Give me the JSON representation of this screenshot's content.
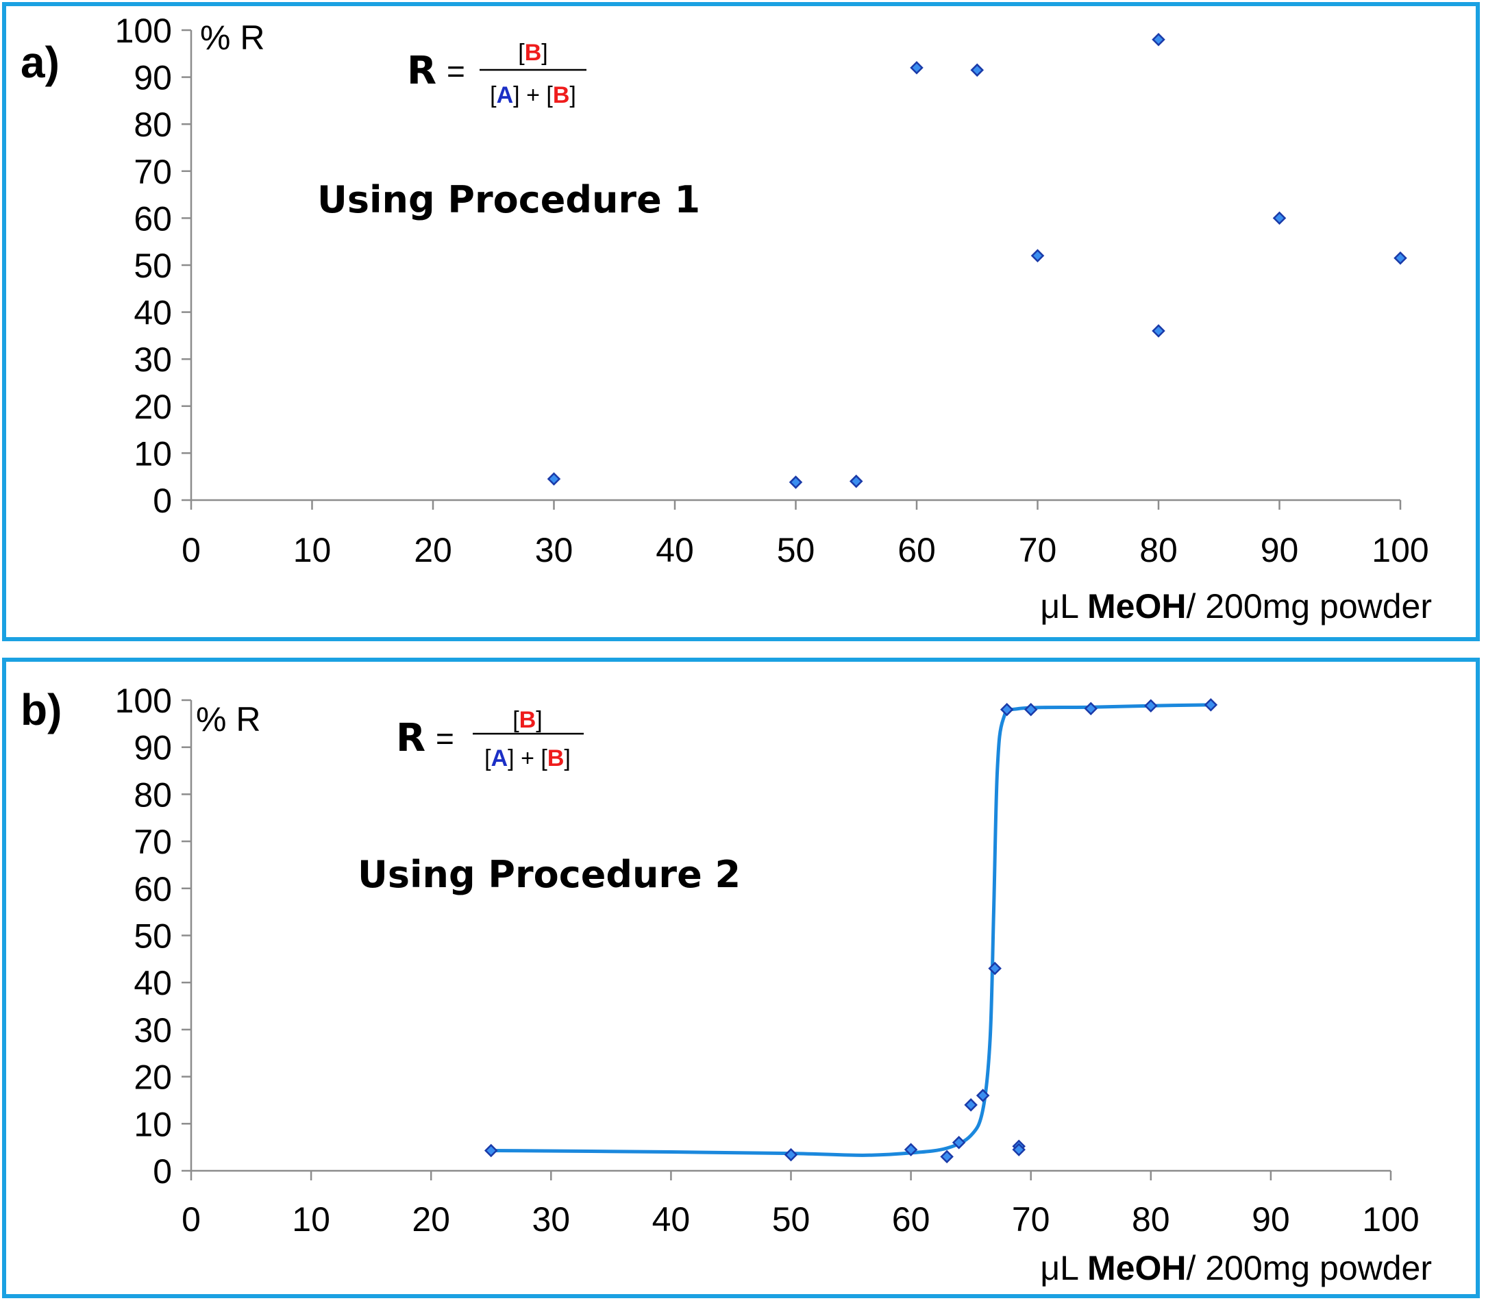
{
  "colors": {
    "border": "#1ba1e2",
    "marker_fill": "#3a8ef0",
    "marker_stroke": "#1a3aa8",
    "curve": "#1b88dd",
    "A": "#1b2fc6",
    "B": "#ef1c1c"
  },
  "formula": {
    "lhs": "R",
    "equals": "=",
    "num_open": "[",
    "num_var": "B",
    "num_close": "]",
    "den_open_a": "[",
    "den_var_a": "A",
    "den_mid": "] + [",
    "den_var_b": "B",
    "den_close_b": "]"
  },
  "chart_data": [
    {
      "panel": "a)",
      "type": "scatter",
      "annotation": "Using Procedure 1",
      "ylabel": "% R",
      "xlabel": {
        "prefix": "μL ",
        "bold": "MeOH",
        "suffix": "/ 200mg powder"
      },
      "xlim": [
        0,
        100
      ],
      "ylim": [
        0,
        100
      ],
      "xticks": [
        "0",
        "10",
        "20",
        "30",
        "40",
        "50",
        "60",
        "70",
        "80",
        "90",
        "100"
      ],
      "yticks": [
        "0",
        "10",
        "20",
        "30",
        "40",
        "50",
        "60",
        "70",
        "80",
        "90",
        "100"
      ],
      "points": [
        {
          "x": 30,
          "y": 4.5
        },
        {
          "x": 50,
          "y": 3.8
        },
        {
          "x": 55,
          "y": 4
        },
        {
          "x": 60,
          "y": 92
        },
        {
          "x": 65,
          "y": 91.5
        },
        {
          "x": 70,
          "y": 52
        },
        {
          "x": 80,
          "y": 98
        },
        {
          "x": 80,
          "y": 36
        },
        {
          "x": 90,
          "y": 60
        },
        {
          "x": 100,
          "y": 51.5
        }
      ]
    },
    {
      "panel": "b)",
      "type": "scatter",
      "annotation": "Using Procedure 2",
      "ylabel": "% R",
      "xlabel": {
        "prefix": "μL ",
        "bold": "MeOH",
        "suffix": "/ 200mg powder"
      },
      "xlim": [
        0,
        100
      ],
      "ylim": [
        0,
        100
      ],
      "xticks": [
        "0",
        "10",
        "20",
        "30",
        "40",
        "50",
        "60",
        "70",
        "80",
        "90",
        "100"
      ],
      "yticks": [
        "0",
        "10",
        "20",
        "30",
        "40",
        "50",
        "60",
        "70",
        "80",
        "90",
        "100"
      ],
      "points": [
        {
          "x": 25,
          "y": 4.3
        },
        {
          "x": 50,
          "y": 3.4
        },
        {
          "x": 60,
          "y": 4.5
        },
        {
          "x": 63,
          "y": 3
        },
        {
          "x": 64,
          "y": 6
        },
        {
          "x": 65,
          "y": 14
        },
        {
          "x": 66,
          "y": 16
        },
        {
          "x": 67,
          "y": 43
        },
        {
          "x": 68,
          "y": 98
        },
        {
          "x": 69,
          "y": 5.2
        },
        {
          "x": 69,
          "y": 4.5
        },
        {
          "x": 70,
          "y": 98
        },
        {
          "x": 75,
          "y": 98.2
        },
        {
          "x": 80,
          "y": 98.8
        },
        {
          "x": 85,
          "y": 99
        }
      ],
      "fit_curve": [
        {
          "x": 25,
          "y": 4.3
        },
        {
          "x": 40,
          "y": 4.0
        },
        {
          "x": 50,
          "y": 3.7
        },
        {
          "x": 56,
          "y": 3.3
        },
        {
          "x": 60,
          "y": 3.8
        },
        {
          "x": 63,
          "y": 4.8
        },
        {
          "x": 65,
          "y": 7.5
        },
        {
          "x": 66,
          "y": 13
        },
        {
          "x": 66.6,
          "y": 28
        },
        {
          "x": 66.9,
          "y": 55
        },
        {
          "x": 67.2,
          "y": 85
        },
        {
          "x": 67.7,
          "y": 96
        },
        {
          "x": 69,
          "y": 98.2
        },
        {
          "x": 75,
          "y": 98.5
        },
        {
          "x": 80,
          "y": 98.8
        },
        {
          "x": 85,
          "y": 99
        }
      ]
    }
  ]
}
